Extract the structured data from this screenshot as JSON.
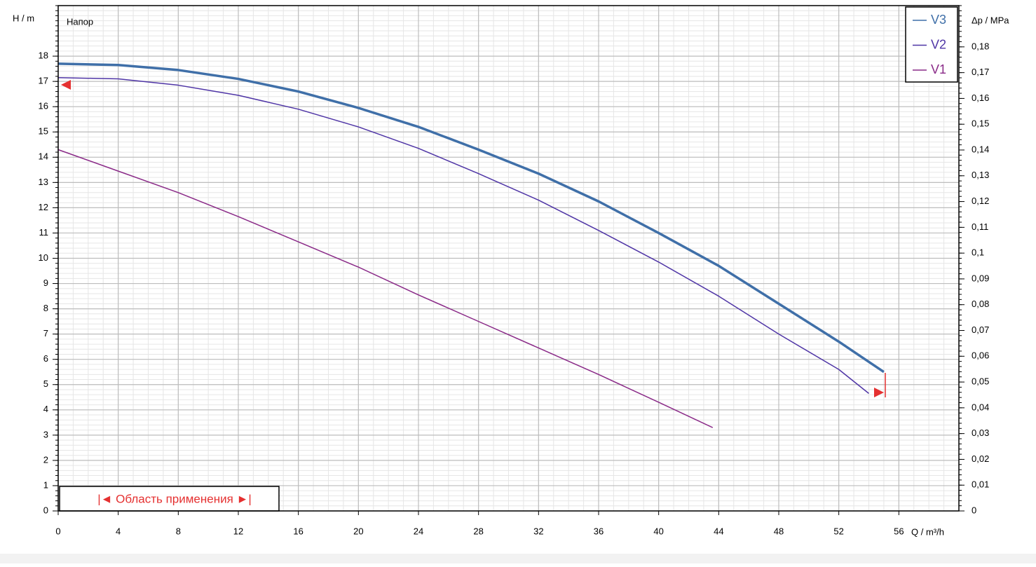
{
  "chart_data": {
    "type": "line",
    "title": "Напор",
    "annotation": "|◄ Область применения ►|",
    "xlabel": "Q / m³/h",
    "ylabel": "H / m",
    "y2label": "Δp / MPa",
    "xlim": [
      0,
      60
    ],
    "ylim": [
      0,
      20
    ],
    "y2lim": [
      0,
      0.196
    ],
    "xticks": [
      0,
      4,
      8,
      12,
      16,
      20,
      24,
      28,
      32,
      36,
      40,
      44,
      48,
      52,
      56
    ],
    "yticks": [
      0,
      1,
      2,
      3,
      4,
      5,
      6,
      7,
      8,
      9,
      10,
      11,
      12,
      13,
      14,
      15,
      16,
      17,
      18
    ],
    "y2ticks": [
      0,
      {
        "value": 0.01,
        "label": "0,01"
      },
      {
        "value": 0.02,
        "label": "0,02"
      },
      {
        "value": 0.03,
        "label": "0,03"
      },
      {
        "value": 0.04,
        "label": "0,04"
      },
      {
        "value": 0.05,
        "label": "0,05"
      },
      {
        "value": 0.06,
        "label": "0,06"
      },
      {
        "value": 0.07,
        "label": "0,07"
      },
      {
        "value": 0.08,
        "label": "0,08"
      },
      {
        "value": 0.09,
        "label": "0,09"
      },
      {
        "value": 0.1,
        "label": "0,1"
      },
      {
        "value": 0.11,
        "label": "0,11"
      },
      {
        "value": 0.12,
        "label": "0,12"
      },
      {
        "value": 0.13,
        "label": "0,13"
      },
      {
        "value": 0.14,
        "label": "0,14"
      },
      {
        "value": 0.15,
        "label": "0,15"
      },
      {
        "value": 0.16,
        "label": "0,16"
      },
      {
        "value": 0.17,
        "label": "0,17"
      },
      {
        "value": 0.18,
        "label": "0,18"
      }
    ],
    "grid": true,
    "xminor": 1,
    "yminor": 0.2,
    "legend": "upper right",
    "series": [
      {
        "name": "V3",
        "color": "#3f6fa8",
        "width": 3.5,
        "x": [
          0,
          4,
          8,
          12,
          16,
          20,
          24,
          28,
          32,
          36,
          40,
          44,
          48,
          52,
          55
        ],
        "values": [
          17.7,
          17.65,
          17.45,
          17.1,
          16.6,
          15.95,
          15.2,
          14.3,
          13.35,
          12.25,
          11.0,
          9.7,
          8.2,
          6.7,
          5.5
        ]
      },
      {
        "name": "V2",
        "color": "#4f35a6",
        "width": 1.5,
        "x": [
          0,
          4,
          8,
          12,
          16,
          20,
          24,
          28,
          32,
          36,
          40,
          44,
          48,
          52,
          54
        ],
        "values": [
          17.15,
          17.1,
          16.85,
          16.45,
          15.9,
          15.2,
          14.35,
          13.35,
          12.3,
          11.1,
          9.85,
          8.5,
          7.0,
          5.6,
          4.65
        ]
      },
      {
        "name": "V1",
        "color": "#8a2a88",
        "width": 1.5,
        "x": [
          0,
          4,
          8,
          12,
          16,
          20,
          24,
          28,
          32,
          36,
          40,
          43.6
        ],
        "values": [
          14.3,
          13.45,
          12.6,
          11.65,
          10.65,
          9.65,
          8.55,
          7.5,
          6.45,
          5.4,
          4.3,
          3.3
        ]
      }
    ]
  }
}
